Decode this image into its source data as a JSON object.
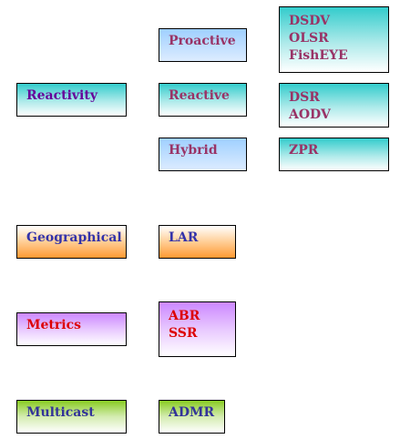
{
  "categories": {
    "reactivity": "Reactivity",
    "geographical": "Geographical",
    "metrics": "Metrics",
    "multicast": "Multicast"
  },
  "reactivity_types": {
    "proactive": "Proactive",
    "reactive": "Reactive",
    "hybrid": "Hybrid"
  },
  "protocols": {
    "proactive": [
      "DSDV",
      "OLSR",
      "FishEYE"
    ],
    "reactive": [
      "DSR",
      "AODV"
    ],
    "hybrid": [
      "ZPR"
    ],
    "geographical": [
      "LAR"
    ],
    "metrics": [
      "ABR",
      "SSR"
    ],
    "multicast": [
      "ADMR"
    ]
  },
  "colors": {
    "teal": "#33cccc",
    "light_blue": "#9fd0ff",
    "orange": "#ff9933",
    "purple": "#cc88ff",
    "green": "#88cc22",
    "text_navy": "#3333aa",
    "text_violet": "#660099",
    "text_plum": "#993366",
    "text_red": "#dd0000"
  }
}
